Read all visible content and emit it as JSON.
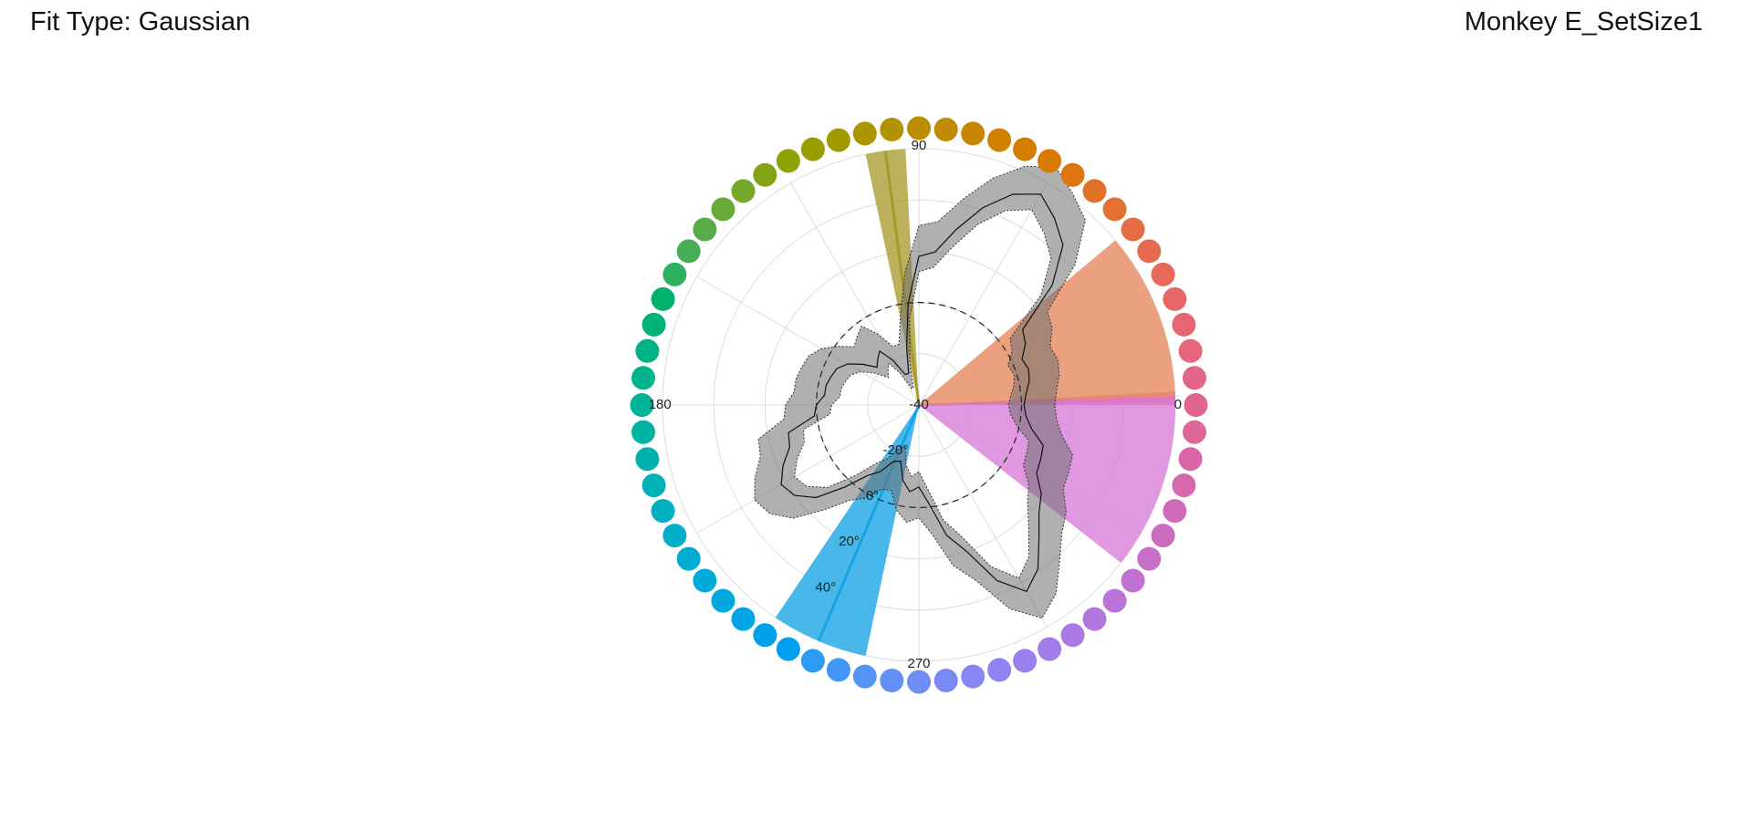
{
  "header": {
    "fit_type": "Fit Type: Gaussian",
    "subject": "Monkey E_SetSize1"
  },
  "chart_data": {
    "type": "polar-line",
    "title": "",
    "angle_unit": "degrees",
    "angle_tick_labels": [
      {
        "angle": 0,
        "label": "0"
      },
      {
        "angle": 90,
        "label": "90"
      },
      {
        "angle": 180,
        "label": "180"
      },
      {
        "angle": 270,
        "label": "270"
      }
    ],
    "radial_range": [
      -40,
      60
    ],
    "radial_tick_labels": [
      {
        "value": -40,
        "label": "-40"
      },
      {
        "value": -20,
        "label": "-20°"
      },
      {
        "value": 0,
        "label": "0°"
      },
      {
        "value": 20,
        "label": "20°"
      },
      {
        "value": 40,
        "label": "40°"
      }
    ],
    "radial_label_angle": 243,
    "reference_circle_value": 0,
    "grid": true,
    "color_wheel": {
      "count": 64,
      "radius_value": 68,
      "lightness": 0.67,
      "chroma": 0.16
    },
    "fit_sectors": [
      {
        "center": 97.5,
        "width": 9,
        "color": "#a69828",
        "opacity": 0.75
      },
      {
        "center": 1.5,
        "width": 3,
        "color": "#e8507a",
        "opacity": 0.9
      },
      {
        "from": 40,
        "to": 2,
        "color": "#e8906a",
        "opacity": 0.85
      },
      {
        "from": 2,
        "to": -38,
        "color": "#d880d8",
        "opacity": 0.8
      },
      {
        "center": 247,
        "width": 22,
        "color": "#14a3e4",
        "opacity": 0.78
      }
    ],
    "series": [
      {
        "name": "",
        "angles": [
          0,
          6,
          12,
          18,
          24,
          30,
          36,
          42,
          48,
          54,
          60,
          66,
          72,
          78,
          84,
          90,
          96,
          102,
          108,
          114,
          120,
          126,
          132,
          138,
          144,
          150,
          156,
          162,
          168,
          174,
          180,
          186,
          192,
          198,
          204,
          210,
          216,
          222,
          228,
          234,
          240,
          246,
          252,
          258,
          264,
          270,
          276,
          282,
          288,
          294,
          300,
          306,
          312,
          318,
          324,
          330,
          336,
          342,
          348,
          354
        ],
        "mean": [
          1,
          2,
          4,
          5,
          4,
          8,
          10,
          30,
          44,
          50,
          55,
          50,
          41,
          30,
          20,
          18,
          0,
          -17,
          -27,
          -27,
          -20,
          -14,
          -16,
          -18,
          -13,
          -8,
          -5,
          -4,
          -3,
          -3,
          0,
          1,
          12,
          13,
          18,
          22,
          20,
          14,
          3,
          -6,
          -10,
          -16,
          -17,
          -10,
          -6,
          -8,
          -1,
          12,
          20,
          35,
          44,
          39,
          30,
          23,
          19,
          13,
          12,
          11,
          5,
          2
        ],
        "lower": [
          -5,
          -4,
          -2,
          -1,
          -2,
          2,
          4,
          24,
          37,
          43,
          48,
          43,
          34,
          23,
          14,
          12,
          -6,
          -23,
          -33,
          -33,
          -26,
          -20,
          -22,
          -24,
          -19,
          -14,
          -11,
          -10,
          -9,
          -9,
          -6,
          -5,
          6,
          7,
          12,
          16,
          14,
          8,
          -3,
          -12,
          -16,
          -22,
          -23,
          -16,
          -12,
          -14,
          -7,
          6,
          14,
          29,
          38,
          33,
          24,
          17,
          13,
          7,
          6,
          5,
          -1,
          -4
        ],
        "upper": [
          13,
          14,
          16,
          17,
          16,
          20,
          22,
          42,
          57,
          62,
          67,
          62,
          53,
          42,
          32,
          30,
          12,
          -5,
          -15,
          -15,
          -8,
          -2,
          -4,
          -6,
          -1,
          4,
          7,
          8,
          9,
          9,
          12,
          13,
          24,
          25,
          30,
          34,
          32,
          26,
          15,
          6,
          2,
          -4,
          -5,
          2,
          6,
          4,
          11,
          24,
          32,
          47,
          56,
          51,
          42,
          35,
          31,
          25,
          24,
          23,
          17,
          14
        ]
      }
    ]
  }
}
